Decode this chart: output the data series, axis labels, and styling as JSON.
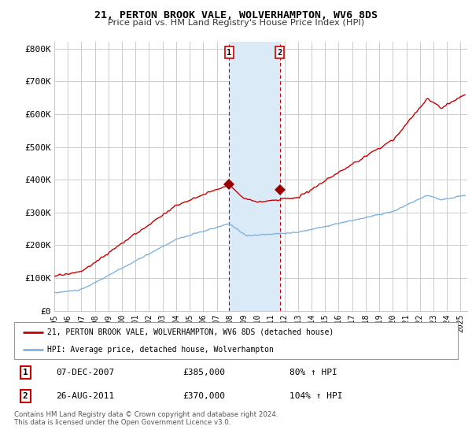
{
  "title1": "21, PERTON BROOK VALE, WOLVERHAMPTON, WV6 8DS",
  "title2": "Price paid vs. HM Land Registry's House Price Index (HPI)",
  "legend_line1": "21, PERTON BROOK VALE, WOLVERHAMPTON, WV6 8DS (detached house)",
  "legend_line2": "HPI: Average price, detached house, Wolverhampton",
  "footer": "Contains HM Land Registry data © Crown copyright and database right 2024.\nThis data is licensed under the Open Government Licence v3.0.",
  "sale1_date": "07-DEC-2007",
  "sale1_price": "£385,000",
  "sale1_hpi": "80% ↑ HPI",
  "sale2_date": "26-AUG-2011",
  "sale2_price": "£370,000",
  "sale2_hpi": "104% ↑ HPI",
  "hpi_color": "#7fb3e0",
  "price_color": "#cc0000",
  "sale_dot_color": "#990000",
  "highlight_color": "#daeaf7",
  "vline_color": "#cc0000",
  "background_color": "#ffffff",
  "grid_color": "#cccccc",
  "ylim": [
    0,
    820000
  ],
  "yticks": [
    0,
    100000,
    200000,
    300000,
    400000,
    500000,
    600000,
    700000,
    800000
  ],
  "ytick_labels": [
    "£0",
    "£100K",
    "£200K",
    "£300K",
    "£400K",
    "£500K",
    "£600K",
    "£700K",
    "£800K"
  ],
  "sale1_x": 2007.92,
  "sale1_y": 385000,
  "sale2_x": 2011.65,
  "sale2_y": 370000,
  "shade_x1": 2007.92,
  "shade_x2": 2011.65,
  "xmin": 1995,
  "xmax": 2025.5,
  "xticks": [
    1995,
    1996,
    1997,
    1998,
    1999,
    2000,
    2001,
    2002,
    2003,
    2004,
    2005,
    2006,
    2007,
    2008,
    2009,
    2010,
    2011,
    2012,
    2013,
    2014,
    2015,
    2016,
    2017,
    2018,
    2019,
    2020,
    2021,
    2022,
    2023,
    2024,
    2025
  ]
}
